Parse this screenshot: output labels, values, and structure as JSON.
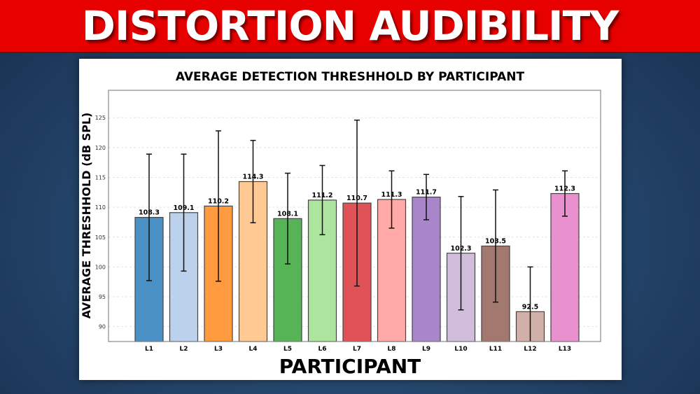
{
  "banner": {
    "title": "DISTORTION AUDIBILITY"
  },
  "chart_data": {
    "type": "bar",
    "title": "AVERAGE DETECTION THRESHHOLD BY PARTICIPANT",
    "xlabel": "PARTICIPANT",
    "ylabel": "AVERAGE THRESHHOLD (dB SPL)",
    "categories": [
      "L1",
      "L2",
      "L3",
      "L4",
      "L5",
      "L6",
      "L7",
      "L8",
      "L9",
      "L10",
      "L11",
      "L12",
      "L13"
    ],
    "values": [
      108.3,
      109.1,
      110.2,
      114.3,
      108.1,
      111.2,
      110.7,
      111.3,
      111.7,
      102.3,
      103.5,
      92.5,
      112.3
    ],
    "value_labels": [
      "108.3",
      "109.1",
      "110.2",
      "114.3",
      "108.1",
      "111.2",
      "110.7",
      "111.3",
      "111.7",
      "102.3",
      "103.5",
      "92.5",
      "112.3"
    ],
    "errors": [
      10.6,
      9.8,
      12.6,
      6.9,
      7.6,
      5.8,
      13.9,
      4.8,
      3.8,
      9.5,
      9.4,
      7.5,
      3.8
    ],
    "ylim": [
      87.5,
      129.6
    ],
    "yticks": [
      90,
      95,
      100,
      105,
      110,
      115,
      120,
      125
    ],
    "grid": true,
    "colors": [
      "#4a90c4",
      "#bcd2ec",
      "#ff9a3e",
      "#ffc993",
      "#56b356",
      "#ade59f",
      "#df5257",
      "#ffaaa8",
      "#a985c9",
      "#d1bedd",
      "#a3796f",
      "#d0b0a9",
      "#e891ce"
    ]
  }
}
